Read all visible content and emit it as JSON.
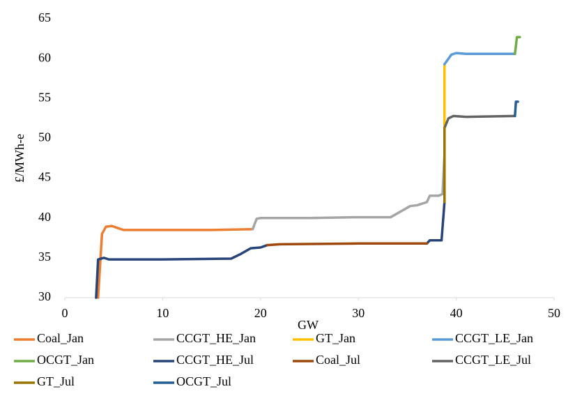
{
  "chart_data": {
    "type": "line",
    "x_label": "GW",
    "y_label": "£/MWh-e",
    "xlim": [
      0,
      50
    ],
    "xticks": [
      0,
      10,
      20,
      30,
      40,
      50
    ],
    "ylim": [
      30,
      65
    ],
    "yticks": [
      30,
      35,
      40,
      45,
      50,
      55,
      60,
      65
    ],
    "grid": false,
    "legend": "bottom",
    "series": [
      {
        "name": "Coal_Jan",
        "color": "#ed7d31",
        "x": [
          3.4,
          3.6,
          3.8,
          4.2,
          4.8,
          5.5,
          6,
          10,
          15,
          19.2
        ],
        "values": [
          30,
          34,
          38,
          38.9,
          39,
          38.7,
          38.5,
          38.5,
          38.5,
          38.6
        ]
      },
      {
        "name": "CCGT_HE_Jan",
        "color": "#a5a5a5",
        "x": [
          19.2,
          19.6,
          20,
          25,
          30,
          33,
          33.3,
          35.3,
          36,
          37,
          37.3,
          38.2,
          38.6,
          38.8
        ],
        "values": [
          38.6,
          39.9,
          40,
          40,
          40.1,
          40.1,
          40.1,
          41.5,
          41.6,
          42,
          42.8,
          42.8,
          43,
          48
        ]
      },
      {
        "name": "GT_Jan",
        "color": "#ffc000",
        "x": [
          38.8,
          38.8
        ],
        "values": [
          42,
          59.3
        ]
      },
      {
        "name": "CCGT_LE_Jan",
        "color": "#5b9bd5",
        "x": [
          38.8,
          39.5,
          40,
          41,
          46
        ],
        "values": [
          59.3,
          60.5,
          60.7,
          60.6,
          60.6
        ]
      },
      {
        "name": "OCGT_Jan",
        "color": "#70ad47",
        "x": [
          46,
          46.2,
          46.5
        ],
        "values": [
          60.6,
          62.7,
          62.7
        ]
      },
      {
        "name": "CCGT_HE_Jul",
        "color": "#264478",
        "x": [
          3.2,
          3.4,
          4,
          4.5,
          10,
          17,
          18,
          19,
          20,
          20.7,
          null,
          37,
          37.3,
          38.5,
          38.8
        ],
        "values": [
          30,
          34.8,
          35,
          34.8,
          34.8,
          34.9,
          35.5,
          36.2,
          36.3,
          36.6,
          null,
          36.8,
          37.2,
          37.2,
          42
        ]
      },
      {
        "name": "Coal_Jul",
        "color": "#9e480e",
        "x": [
          20.7,
          22,
          30,
          37
        ],
        "values": [
          36.6,
          36.7,
          36.8,
          36.8
        ]
      },
      {
        "name": "CCGT_LE_Jul",
        "color": "#636363",
        "x": [
          38.8,
          39.2,
          39.7,
          41,
          46
        ],
        "values": [
          51.3,
          52.5,
          52.8,
          52.7,
          52.8
        ]
      },
      {
        "name": "GT_Jul",
        "color": "#997300",
        "x": [
          38.8,
          38.8
        ],
        "values": [
          42,
          51.3
        ]
      },
      {
        "name": "OCGT_Jul",
        "color": "#255e91",
        "x": [
          46,
          46.1,
          46.3
        ],
        "values": [
          52.8,
          54.6,
          54.6
        ]
      }
    ]
  }
}
